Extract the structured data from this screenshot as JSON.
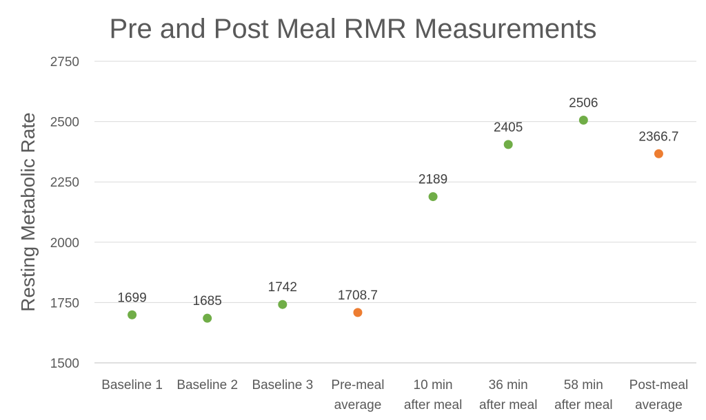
{
  "chart_data": {
    "type": "scatter",
    "title": "Pre and Post Meal RMR Measurements",
    "xlabel": "",
    "ylabel": "Resting Metabolic Rate",
    "ylim": [
      1500,
      2750
    ],
    "yticks": [
      1500,
      1750,
      2000,
      2250,
      2500,
      2750
    ],
    "grid": true,
    "legend": "none",
    "categories": [
      [
        "Baseline 1"
      ],
      [
        "Baseline 2"
      ],
      [
        "Baseline 3"
      ],
      [
        "Pre-meal",
        "average"
      ],
      [
        "10 min",
        "after meal"
      ],
      [
        "36 min",
        "after meal"
      ],
      [
        "58 min",
        "after meal"
      ],
      [
        "Post-meal",
        "average"
      ]
    ],
    "values": [
      1699,
      1685,
      1742,
      1708.7,
      2189,
      2405,
      2506,
      2366.7
    ],
    "data_labels": [
      "1699",
      "1685",
      "1742",
      "1708.7",
      "2189",
      "2405",
      "2506",
      "2366.7"
    ],
    "point_colors": [
      "#70AD47",
      "#70AD47",
      "#70AD47",
      "#ED7D31",
      "#70AD47",
      "#70AD47",
      "#70AD47",
      "#ED7D31"
    ]
  }
}
